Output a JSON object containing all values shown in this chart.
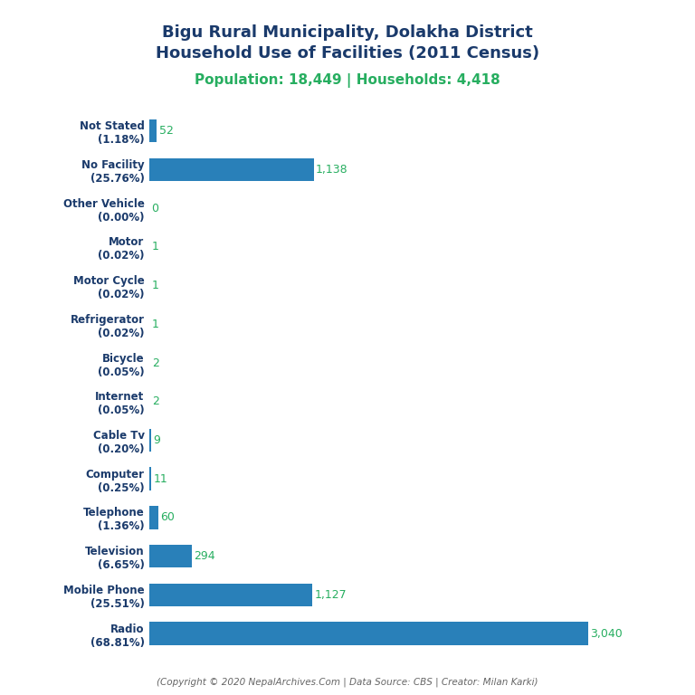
{
  "title_line1": "Bigu Rural Municipality, Dolakha District",
  "title_line2": "Household Use of Facilities (2011 Census)",
  "subtitle": "Population: 18,449 | Households: 4,418",
  "footer": "(Copyright © 2020 NepalArchives.Com | Data Source: CBS | Creator: Milan Karki)",
  "categories": [
    "Radio\n(68.81%)",
    "Mobile Phone\n(25.51%)",
    "Television\n(6.65%)",
    "Telephone\n(1.36%)",
    "Computer\n(0.25%)",
    "Cable Tv\n(0.20%)",
    "Internet\n(0.05%)",
    "Bicycle\n(0.05%)",
    "Refrigerator\n(0.02%)",
    "Motor Cycle\n(0.02%)",
    "Motor\n(0.02%)",
    "Other Vehicle\n(0.00%)",
    "No Facility\n(25.76%)",
    "Not Stated\n(1.18%)"
  ],
  "values": [
    3040,
    1127,
    294,
    60,
    11,
    9,
    2,
    2,
    1,
    1,
    1,
    0,
    1138,
    52
  ],
  "value_labels": [
    "3,040",
    "1,127",
    "294",
    "60",
    "11",
    "9",
    "2",
    "2",
    "1",
    "1",
    "1",
    "0",
    "1,138",
    "52"
  ],
  "bar_color": "#2980b9",
  "value_color": "#27ae60",
  "title_color": "#1a3a6b",
  "subtitle_color": "#27ae60",
  "footer_color": "#666666",
  "ylabel_color": "#1a3a6b",
  "background_color": "#ffffff",
  "xlim": [
    0,
    3300
  ]
}
